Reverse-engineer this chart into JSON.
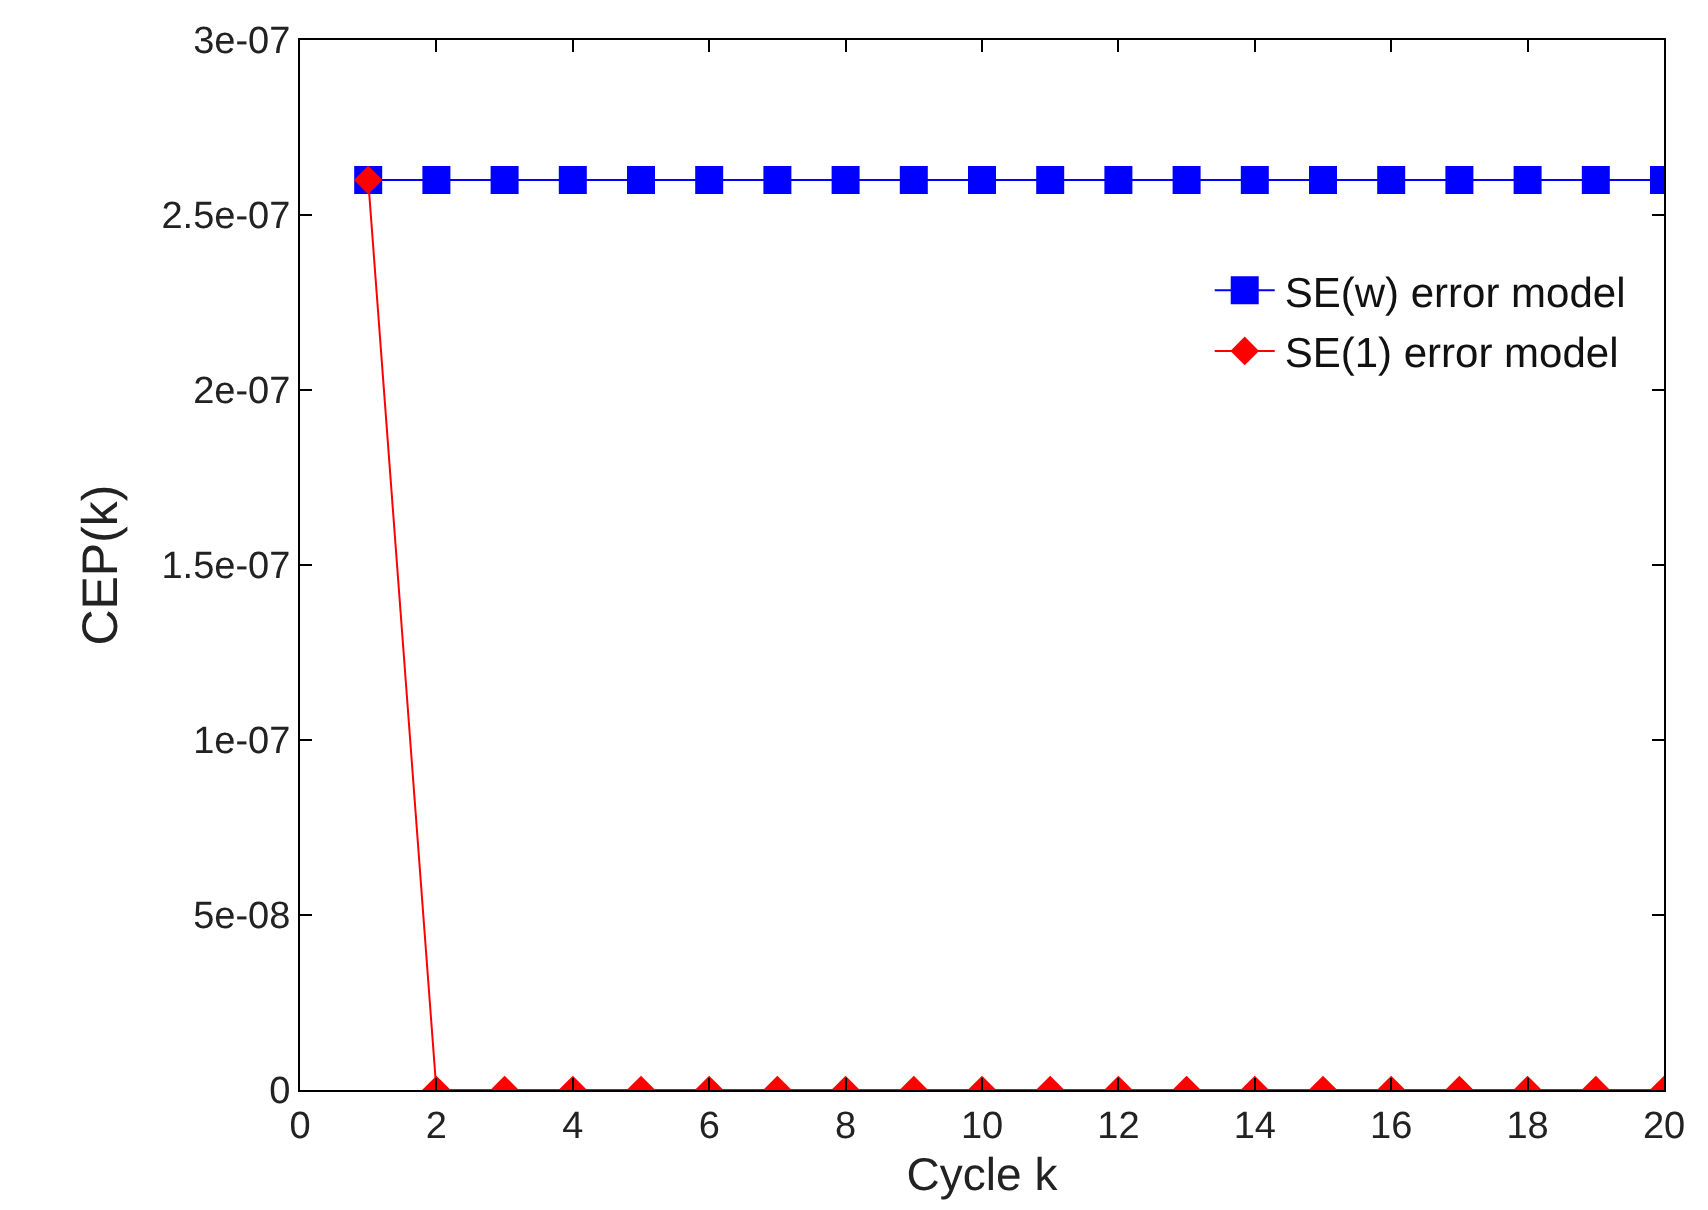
{
  "chart_data": {
    "type": "line",
    "xlabel": "Cycle k",
    "ylabel": "CEP(k)",
    "x": [
      1,
      2,
      3,
      4,
      5,
      6,
      7,
      8,
      9,
      10,
      11,
      12,
      13,
      14,
      15,
      16,
      17,
      18,
      19,
      20
    ],
    "series": [
      {
        "name": "SE(w) error model",
        "color": "#0000ff",
        "marker": "square",
        "values": [
          2.6e-07,
          2.6e-07,
          2.6e-07,
          2.6e-07,
          2.6e-07,
          2.6e-07,
          2.6e-07,
          2.6e-07,
          2.6e-07,
          2.6e-07,
          2.6e-07,
          2.6e-07,
          2.6e-07,
          2.6e-07,
          2.6e-07,
          2.6e-07,
          2.6e-07,
          2.6e-07,
          2.6e-07,
          2.6e-07
        ]
      },
      {
        "name": "SE(1) error model",
        "color": "#ff0000",
        "marker": "diamond",
        "values": [
          2.6e-07,
          0,
          0,
          0,
          0,
          0,
          0,
          0,
          0,
          0,
          0,
          0,
          0,
          0,
          0,
          0,
          0,
          0,
          0,
          0
        ]
      }
    ],
    "xlim": [
      0,
      20
    ],
    "xticks": [
      0,
      2,
      4,
      6,
      8,
      10,
      12,
      14,
      16,
      18,
      20
    ],
    "ylim": [
      0,
      3e-07
    ],
    "yticks": [
      0,
      {
        "value": 5e-08,
        "label": "5e-08"
      },
      {
        "value": 1e-07,
        "label": "1e-07"
      },
      {
        "value": 1.5e-07,
        "label": "1.5e-07"
      },
      {
        "value": 2e-07,
        "label": "2e-07"
      },
      {
        "value": 2.5e-07,
        "label": "2.5e-07"
      },
      {
        "value": 3e-07,
        "label": "3e-07"
      }
    ],
    "legend": "top right",
    "line_style": "solid"
  }
}
